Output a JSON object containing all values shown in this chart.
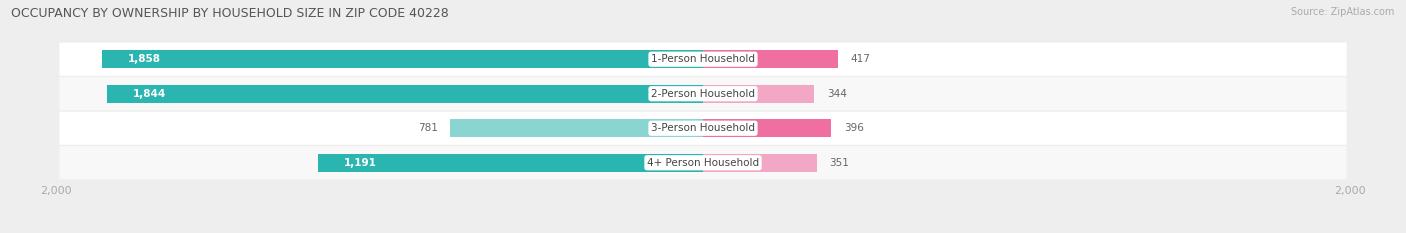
{
  "title": "OCCUPANCY BY OWNERSHIP BY HOUSEHOLD SIZE IN ZIP CODE 40228",
  "source": "Source: ZipAtlas.com",
  "categories": [
    "1-Person Household",
    "2-Person Household",
    "3-Person Household",
    "4+ Person Household"
  ],
  "owner_values": [
    1858,
    1844,
    781,
    1191
  ],
  "renter_values": [
    417,
    344,
    396,
    351
  ],
  "owner_colors": [
    "#2BB5B0",
    "#2BB5B0",
    "#8AD4D1",
    "#2BB5B0"
  ],
  "renter_colors": [
    "#EF6FA0",
    "#F2A8C4",
    "#EF6FA0",
    "#F2A8C4"
  ],
  "axis_max": 2000,
  "bg_color": "#eeeeee",
  "row_bg_even": "#f8f8f8",
  "row_bg_odd": "#ffffff",
  "title_color": "#555555",
  "tick_color": "#aaaaaa",
  "figsize": [
    14.06,
    2.33
  ],
  "dpi": 100
}
